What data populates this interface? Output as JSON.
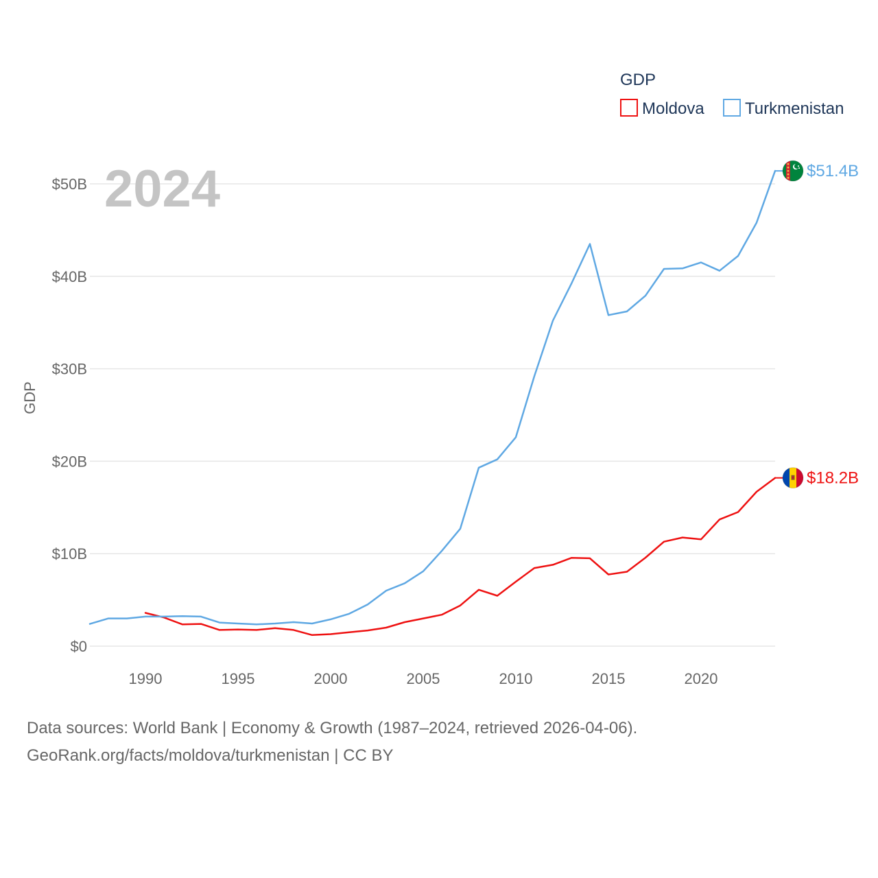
{
  "chart_data": {
    "type": "line",
    "title": "GDP",
    "highlight_year": "2024",
    "xlabel": "",
    "ylabel": "GDP",
    "xlim": [
      1987,
      2024
    ],
    "ylim": [
      0,
      50000000000
    ],
    "grid": true,
    "legend_position": "top-right",
    "x_ticks": [
      1990,
      1995,
      2000,
      2005,
      2010,
      2015,
      2020
    ],
    "x_tick_labels": [
      "1990",
      "1995",
      "2000",
      "2005",
      "2010",
      "2015",
      "2020"
    ],
    "y_ticks": [
      0,
      10000000000,
      20000000000,
      30000000000,
      40000000000,
      50000000000
    ],
    "y_tick_labels": [
      "$0",
      "$10B",
      "$20B",
      "$30B",
      "$40B",
      "$50B"
    ],
    "series": [
      {
        "name": "Moldova",
        "color": "#ee1111",
        "end_label": "$18.2B",
        "flag_icon": "moldova-flag-icon",
        "x": [
          1990,
          1991,
          1992,
          1993,
          1994,
          1995,
          1996,
          1997,
          1998,
          1999,
          2000,
          2001,
          2002,
          2003,
          2004,
          2005,
          2006,
          2007,
          2008,
          2009,
          2010,
          2011,
          2012,
          2013,
          2014,
          2015,
          2016,
          2017,
          2018,
          2019,
          2020,
          2021,
          2022,
          2023,
          2024
        ],
        "values": [
          3600000000.0,
          3100000000.0,
          2350000000.0,
          2400000000.0,
          1750000000.0,
          1800000000.0,
          1750000000.0,
          1950000000.0,
          1750000000.0,
          1200000000.0,
          1300000000.0,
          1500000000.0,
          1700000000.0,
          2000000000.0,
          2600000000.0,
          3000000000.0,
          3400000000.0,
          4400000000.0,
          6100000000.0,
          5450000000.0,
          6970000000.0,
          8450000000.0,
          8800000000.0,
          9550000000.0,
          9500000000.0,
          7750000000.0,
          8050000000.0,
          9570000000.0,
          11300000000.0,
          11750000000.0,
          11550000000.0,
          13700000000.0,
          14500000000.0,
          16700000000.0,
          18200000000.0
        ]
      },
      {
        "name": "Turkmenistan",
        "color": "#5fa8e3",
        "end_label": "$51.4B",
        "flag_icon": "turkmenistan-flag-icon",
        "x": [
          1987,
          1988,
          1989,
          1990,
          1991,
          1992,
          1993,
          1994,
          1995,
          1996,
          1997,
          1998,
          1999,
          2000,
          2001,
          2002,
          2003,
          2004,
          2005,
          2006,
          2007,
          2008,
          2009,
          2010,
          2011,
          2012,
          2013,
          2014,
          2015,
          2016,
          2017,
          2018,
          2019,
          2020,
          2021,
          2022,
          2023,
          2024
        ],
        "values": [
          2400000000.0,
          3000000000.0,
          3000000000.0,
          3200000000.0,
          3200000000.0,
          3250000000.0,
          3200000000.0,
          2550000000.0,
          2450000000.0,
          2350000000.0,
          2450000000.0,
          2600000000.0,
          2450000000.0,
          2900000000.0,
          3500000000.0,
          4500000000.0,
          6000000000.0,
          6800000000.0,
          8100000000.0,
          10300000000.0,
          12700000000.0,
          19300000000.0,
          20200000000.0,
          22600000000.0,
          29200000000.0,
          35200000000.0,
          39200000000.0,
          43500000000.0,
          35800000000.0,
          36200000000.0,
          37900000000.0,
          40800000000.0,
          40850000000.0,
          41500000000.0,
          40600000000.0,
          42200000000.0,
          45800000000.0,
          51400000000.0
        ]
      }
    ]
  },
  "source": {
    "line1": "Data sources: World Bank | Economy & Growth (1987–2024, retrieved 2026-04-06).",
    "line2": "GeoRank.org/facts/moldova/turkmenistan | CC BY"
  }
}
